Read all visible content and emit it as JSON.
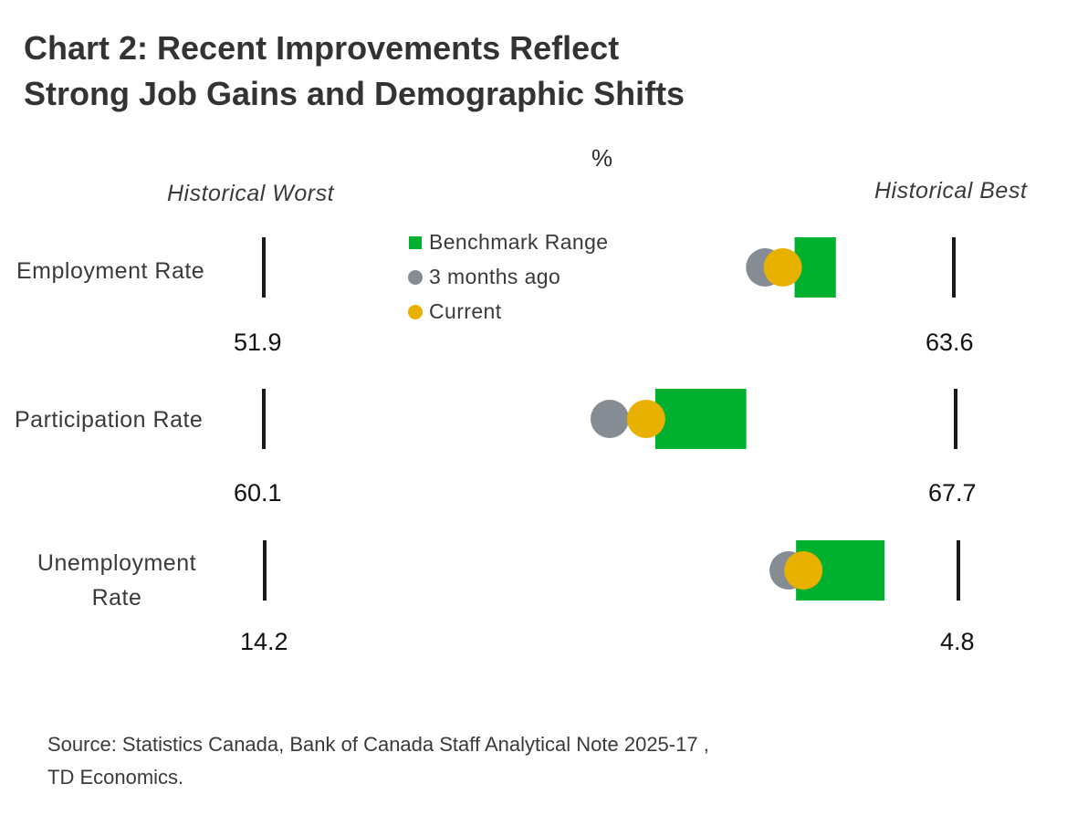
{
  "title_line1": "Chart 2: Recent Improvements Reflect",
  "title_line2": "Strong Job Gains and Demographic Shifts",
  "unit": "%",
  "header_worst": "Historical Worst",
  "header_best": "Historical Best",
  "legend": {
    "benchmark": "Benchmark Range",
    "three_months": "3 months ago",
    "current": "Current"
  },
  "source_line1": "Source: Statistics Canada, Bank of Canada Staff Analytical Note 2025-17 ,",
  "source_line2": "TD Economics.",
  "colors": {
    "benchmark": "#00b02f",
    "three_months": "#858c94",
    "current": "#e8b100",
    "marker": "#1a1a1a"
  },
  "chart_data": {
    "type": "range-dot",
    "rows": [
      {
        "label": "Employment Rate",
        "worst_label": "51.9",
        "best_label": "63.6",
        "worst": 51.9,
        "best": 63.6,
        "benchmark_low": 60.9,
        "benchmark_high": 61.6,
        "three_months_ago": 60.4,
        "current": 60.7
      },
      {
        "label": "Participation Rate",
        "worst_label": "60.1",
        "best_label": "67.7",
        "worst": 60.1,
        "best": 67.7,
        "benchmark_low": 64.4,
        "benchmark_high": 65.4,
        "three_months_ago": 63.9,
        "current": 64.3
      },
      {
        "label": "Unemployment Rate",
        "worst_label": "14.2",
        "best_label": "4.8",
        "worst": 14.2,
        "best": 4.8,
        "benchmark_low": 5.8,
        "benchmark_high": 7.0,
        "three_months_ago": 7.1,
        "current": 6.9
      }
    ]
  }
}
